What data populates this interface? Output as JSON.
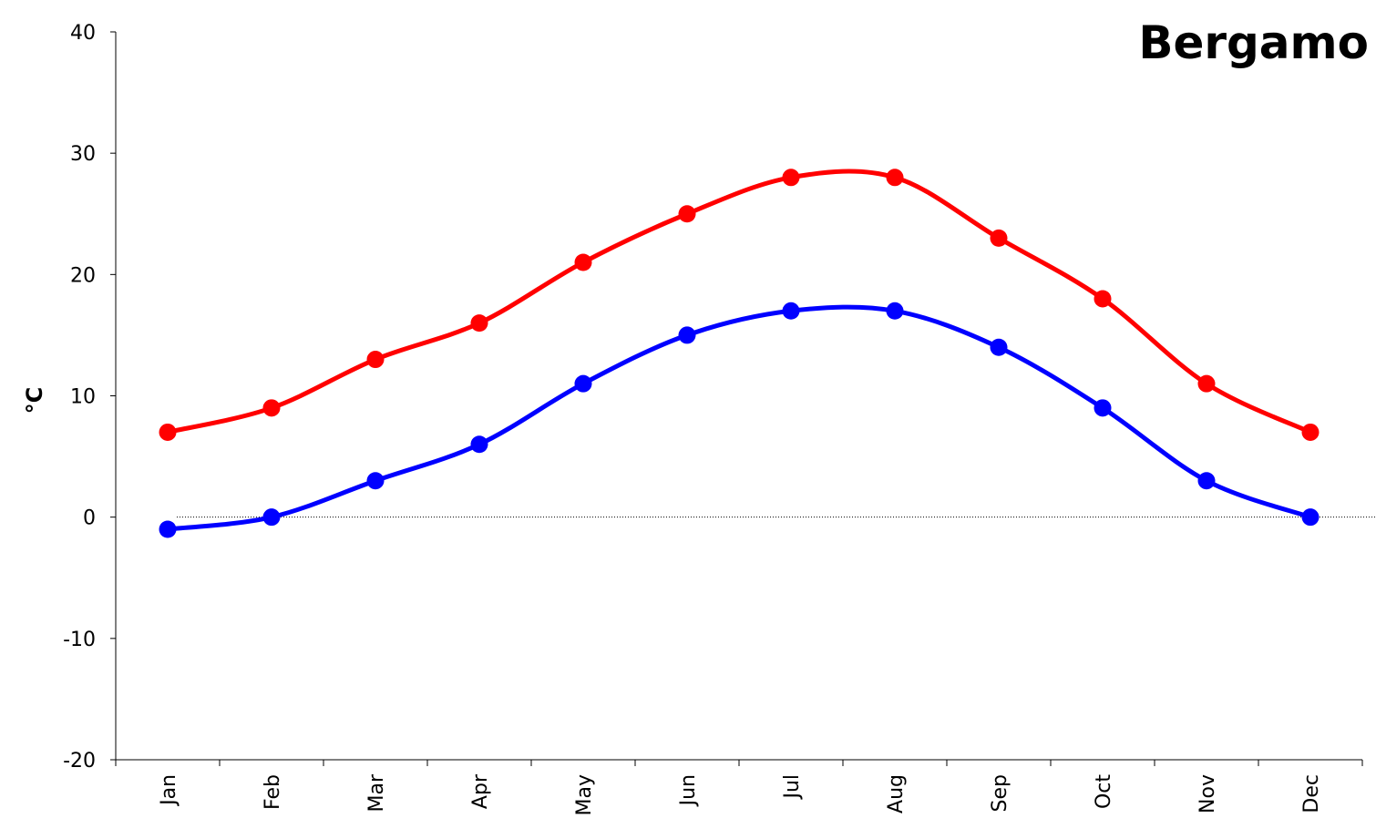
{
  "chart_data": {
    "type": "line",
    "title": "Bergamo",
    "ylabel": "°C",
    "xlabel": "",
    "categories": [
      "Jan",
      "Feb",
      "Mar",
      "Apr",
      "May",
      "Jun",
      "Jul",
      "Aug",
      "Sep",
      "Oct",
      "Nov",
      "Dec"
    ],
    "ylim": [
      -20,
      40
    ],
    "yticks": [
      -20,
      -10,
      0,
      10,
      20,
      30,
      40
    ],
    "series": [
      {
        "color": "#ff0000",
        "values": [
          7,
          9,
          13,
          16,
          21,
          25,
          28,
          28,
          23,
          18,
          11,
          7
        ]
      },
      {
        "color": "#0000ff",
        "values": [
          -1,
          0,
          3,
          6,
          11,
          15,
          17,
          17,
          14,
          9,
          3,
          0
        ]
      }
    ],
    "zero_line": true,
    "grid": false
  }
}
